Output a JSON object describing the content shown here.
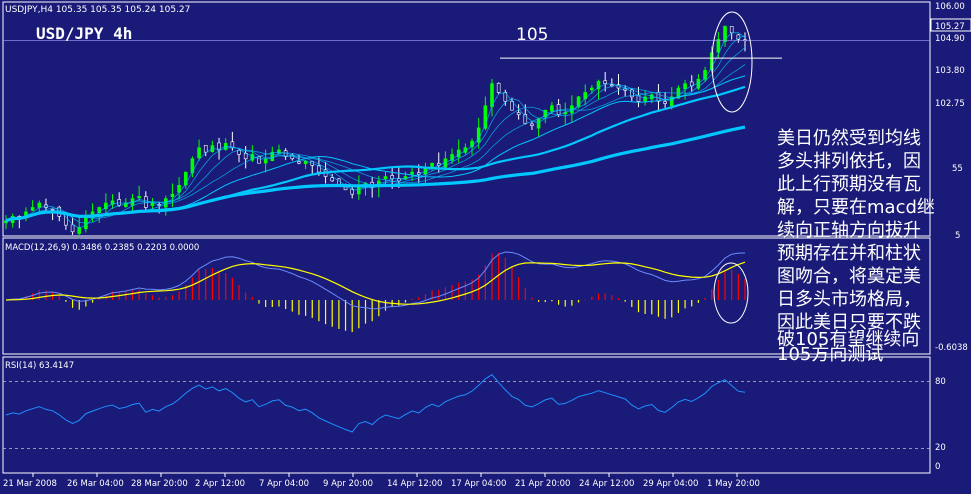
{
  "window": {
    "header_info": "USDJPY,H4  105.35 105.35 105.24 105.27",
    "title": "USD/JPY 4h"
  },
  "colors": {
    "background": "#1a1a78",
    "bull_candle": "#00ff00",
    "bear_candle": "#ffffff",
    "ma_line": "#00c8ff",
    "macd_pos": "#ff0000",
    "macd_neg": "#ffff00",
    "signal_line": "#ffff00",
    "rsi_line": "#1e90ff",
    "text": "#ffffff"
  },
  "price_panel": {
    "annotation_level_label": "105",
    "annotation_level": 104.9,
    "last_price_label": "105.27",
    "axis_labels": [
      "106.00",
      "104.90",
      "103.80",
      "102.75"
    ],
    "commentary": "美日仍然受到均线多头排列依托，因此上行预期没有瓦解，只要在macd继续向正轴方向拔升预期存在并和柱状图吻合，将奠定美日多头市场格局，因此美日只要不跌破105有望继续向105方向测试",
    "commentary_lines": [
      "美日仍然受到均线",
      "多头排列依托，因",
      "此上行预期没有瓦",
      "解，只要在macd继",
      "续向正轴方向拔升",
      "预期存在并和柱状",
      "图吻合，将奠定美",
      "日多头市场格局，",
      "因此美日只要不跌",
      "破105有望继续向",
      "105方向测试"
    ],
    "partial_axis_labels": [
      "55",
      "5"
    ]
  },
  "macd_panel": {
    "label": "MACD(12,26,9) 0.3486 0.2385 0.2203 0.0000",
    "axis_label_bottom": "-0.6038"
  },
  "rsi_panel": {
    "label": "RSI(14) 63.4147",
    "axis_labels": [
      "80",
      "20",
      "0"
    ]
  },
  "x_axis_labels": [
    "21 Mar 2008",
    "26 Mar 04:00",
    "28 Mar 20:00",
    "2 Apr 12:00",
    "7 Apr 04:00",
    "9 Apr 20:00",
    "14 Apr 12:00",
    "17 Apr 04:00",
    "21 Apr 20:00",
    "24 Apr 12:00",
    "29 Apr 04:00",
    "1 May 20:00"
  ],
  "chart_data": [
    {
      "type": "candlestick",
      "title": "USD/JPY 4h",
      "x_range": [
        "21 Mar 2008",
        "1 May 20:00"
      ],
      "ylim": [
        100.9,
        106.1
      ],
      "closes": [
        101.2,
        101.3,
        101.25,
        101.4,
        101.5,
        101.6,
        101.5,
        101.45,
        101.3,
        101.1,
        100.95,
        101.05,
        101.3,
        101.4,
        101.5,
        101.6,
        101.65,
        101.55,
        101.6,
        101.7,
        101.75,
        101.5,
        101.6,
        101.55,
        101.7,
        101.8,
        102.0,
        102.3,
        102.6,
        102.85,
        102.75,
        102.9,
        102.8,
        102.95,
        102.85,
        102.7,
        102.6,
        102.7,
        102.5,
        102.6,
        102.75,
        102.8,
        102.65,
        102.6,
        102.5,
        102.55,
        102.45,
        102.3,
        102.2,
        102.1,
        102.0,
        101.9,
        101.8,
        102.0,
        102.05,
        101.95,
        102.1,
        102.2,
        102.15,
        102.1,
        102.2,
        102.3,
        102.25,
        102.4,
        102.5,
        102.45,
        102.6,
        102.7,
        102.8,
        102.85,
        103.0,
        103.3,
        103.8,
        104.3,
        104.1,
        103.9,
        103.7,
        103.6,
        103.4,
        103.35,
        103.5,
        103.7,
        103.8,
        103.6,
        103.65,
        103.8,
        104.0,
        104.1,
        104.2,
        104.35,
        104.3,
        104.25,
        104.2,
        104.15,
        104.0,
        103.9,
        104.0,
        104.05,
        103.9,
        103.85,
        104.0,
        104.2,
        104.3,
        104.25,
        104.4,
        104.6,
        105.0,
        105.3,
        105.6,
        105.45,
        105.3,
        105.27
      ],
      "macd_hist_sign": "positive Apr 2-7 and Apr 17-21, negative Apr 9-14 and Apr 24-29, turning positive at end",
      "moving_averages": "multiple short MAs above long MAs (bullish alignment)"
    },
    {
      "type": "line",
      "title": "MACD(12,26,9) 0.3486 0.2385 0.2203 0.0000",
      "series": [
        {
          "name": "MACD",
          "last": 0.2385
        },
        {
          "name": "Signal",
          "last": 0.2203
        }
      ],
      "ylim": [
        -0.6038,
        0.6
      ]
    },
    {
      "type": "line",
      "title": "RSI(14) 63.4147",
      "series": [
        {
          "name": "RSI(14)",
          "last": 63.4147
        }
      ],
      "ylim": [
        0,
        100
      ],
      "levels": [
        20,
        80
      ]
    }
  ]
}
